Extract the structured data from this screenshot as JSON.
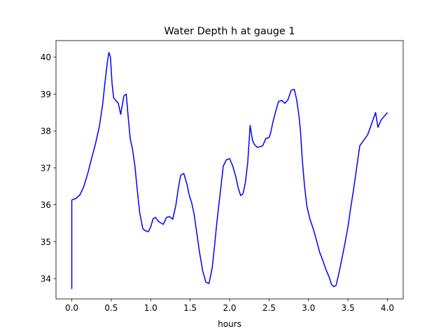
{
  "chart_data": {
    "type": "line",
    "title": "Water Depth h at gauge 1",
    "xlabel": "hours",
    "ylabel": "",
    "xlim": [
      -0.2,
      4.2
    ],
    "ylim": [
      33.45,
      40.45
    ],
    "xticks": [
      0.0,
      0.5,
      1.0,
      1.5,
      2.0,
      2.5,
      3.0,
      3.5,
      4.0
    ],
    "xtick_labels": [
      "0.0",
      "0.5",
      "1.0",
      "1.5",
      "2.0",
      "2.5",
      "3.0",
      "3.5",
      "4.0"
    ],
    "yticks": [
      34,
      35,
      36,
      37,
      38,
      39,
      40
    ],
    "ytick_labels": [
      "34",
      "35",
      "36",
      "37",
      "38",
      "39",
      "40"
    ],
    "grid": false,
    "series": [
      {
        "color": "#0000ff",
        "x": [
          0.0,
          0.0,
          0.05,
          0.1,
          0.15,
          0.2,
          0.25,
          0.3,
          0.35,
          0.39,
          0.42,
          0.45,
          0.47,
          0.49,
          0.51,
          0.53,
          0.55,
          0.59,
          0.62,
          0.64,
          0.66,
          0.69,
          0.71,
          0.74,
          0.77,
          0.8,
          0.83,
          0.86,
          0.9,
          0.93,
          0.97,
          1.0,
          1.03,
          1.06,
          1.09,
          1.12,
          1.16,
          1.2,
          1.24,
          1.28,
          1.32,
          1.35,
          1.38,
          1.42,
          1.46,
          1.49,
          1.52,
          1.55,
          1.58,
          1.62,
          1.66,
          1.7,
          1.74,
          1.78,
          1.81,
          1.84,
          1.88,
          1.92,
          1.96,
          2.0,
          2.04,
          2.08,
          2.11,
          2.14,
          2.17,
          2.2,
          2.23,
          2.26,
          2.29,
          2.31,
          2.33,
          2.35,
          2.38,
          2.42,
          2.46,
          2.5,
          2.52,
          2.55,
          2.58,
          2.62,
          2.66,
          2.7,
          2.74,
          2.78,
          2.82,
          2.85,
          2.88,
          2.9,
          2.92,
          2.95,
          2.98,
          3.02,
          3.06,
          3.1,
          3.14,
          3.18,
          3.22,
          3.26,
          3.29,
          3.32,
          3.35,
          3.38,
          3.41,
          3.44,
          3.47,
          3.5,
          3.53,
          3.57,
          3.61,
          3.65,
          3.7,
          3.75,
          3.8,
          3.85,
          3.88,
          3.92,
          3.96,
          4.0
        ],
        "y": [
          33.72,
          36.13,
          36.17,
          36.26,
          36.48,
          36.83,
          37.25,
          37.65,
          38.13,
          38.7,
          39.3,
          39.85,
          40.13,
          40.0,
          39.3,
          38.9,
          38.85,
          38.75,
          38.45,
          38.7,
          38.95,
          39.0,
          38.5,
          37.8,
          37.5,
          37.05,
          36.4,
          35.8,
          35.35,
          35.3,
          35.27,
          35.4,
          35.62,
          35.66,
          35.57,
          35.52,
          35.47,
          35.66,
          35.68,
          35.61,
          36.0,
          36.45,
          36.8,
          36.85,
          36.55,
          36.25,
          36.05,
          35.75,
          35.3,
          34.7,
          34.2,
          33.9,
          33.87,
          34.3,
          34.9,
          35.55,
          36.3,
          37.05,
          37.22,
          37.25,
          37.05,
          36.75,
          36.45,
          36.25,
          36.3,
          36.6,
          37.15,
          38.15,
          37.75,
          37.65,
          37.6,
          37.56,
          37.57,
          37.6,
          37.8,
          37.82,
          37.95,
          38.25,
          38.5,
          38.8,
          38.83,
          38.75,
          38.85,
          39.1,
          39.13,
          38.85,
          38.4,
          37.95,
          37.25,
          36.5,
          35.95,
          35.6,
          35.35,
          35.05,
          34.72,
          34.5,
          34.25,
          34.05,
          33.85,
          33.78,
          33.82,
          34.1,
          34.4,
          34.72,
          35.05,
          35.4,
          35.85,
          36.4,
          37.0,
          37.6,
          37.75,
          37.9,
          38.2,
          38.5,
          38.1,
          38.3,
          38.4,
          38.5
        ]
      }
    ]
  }
}
